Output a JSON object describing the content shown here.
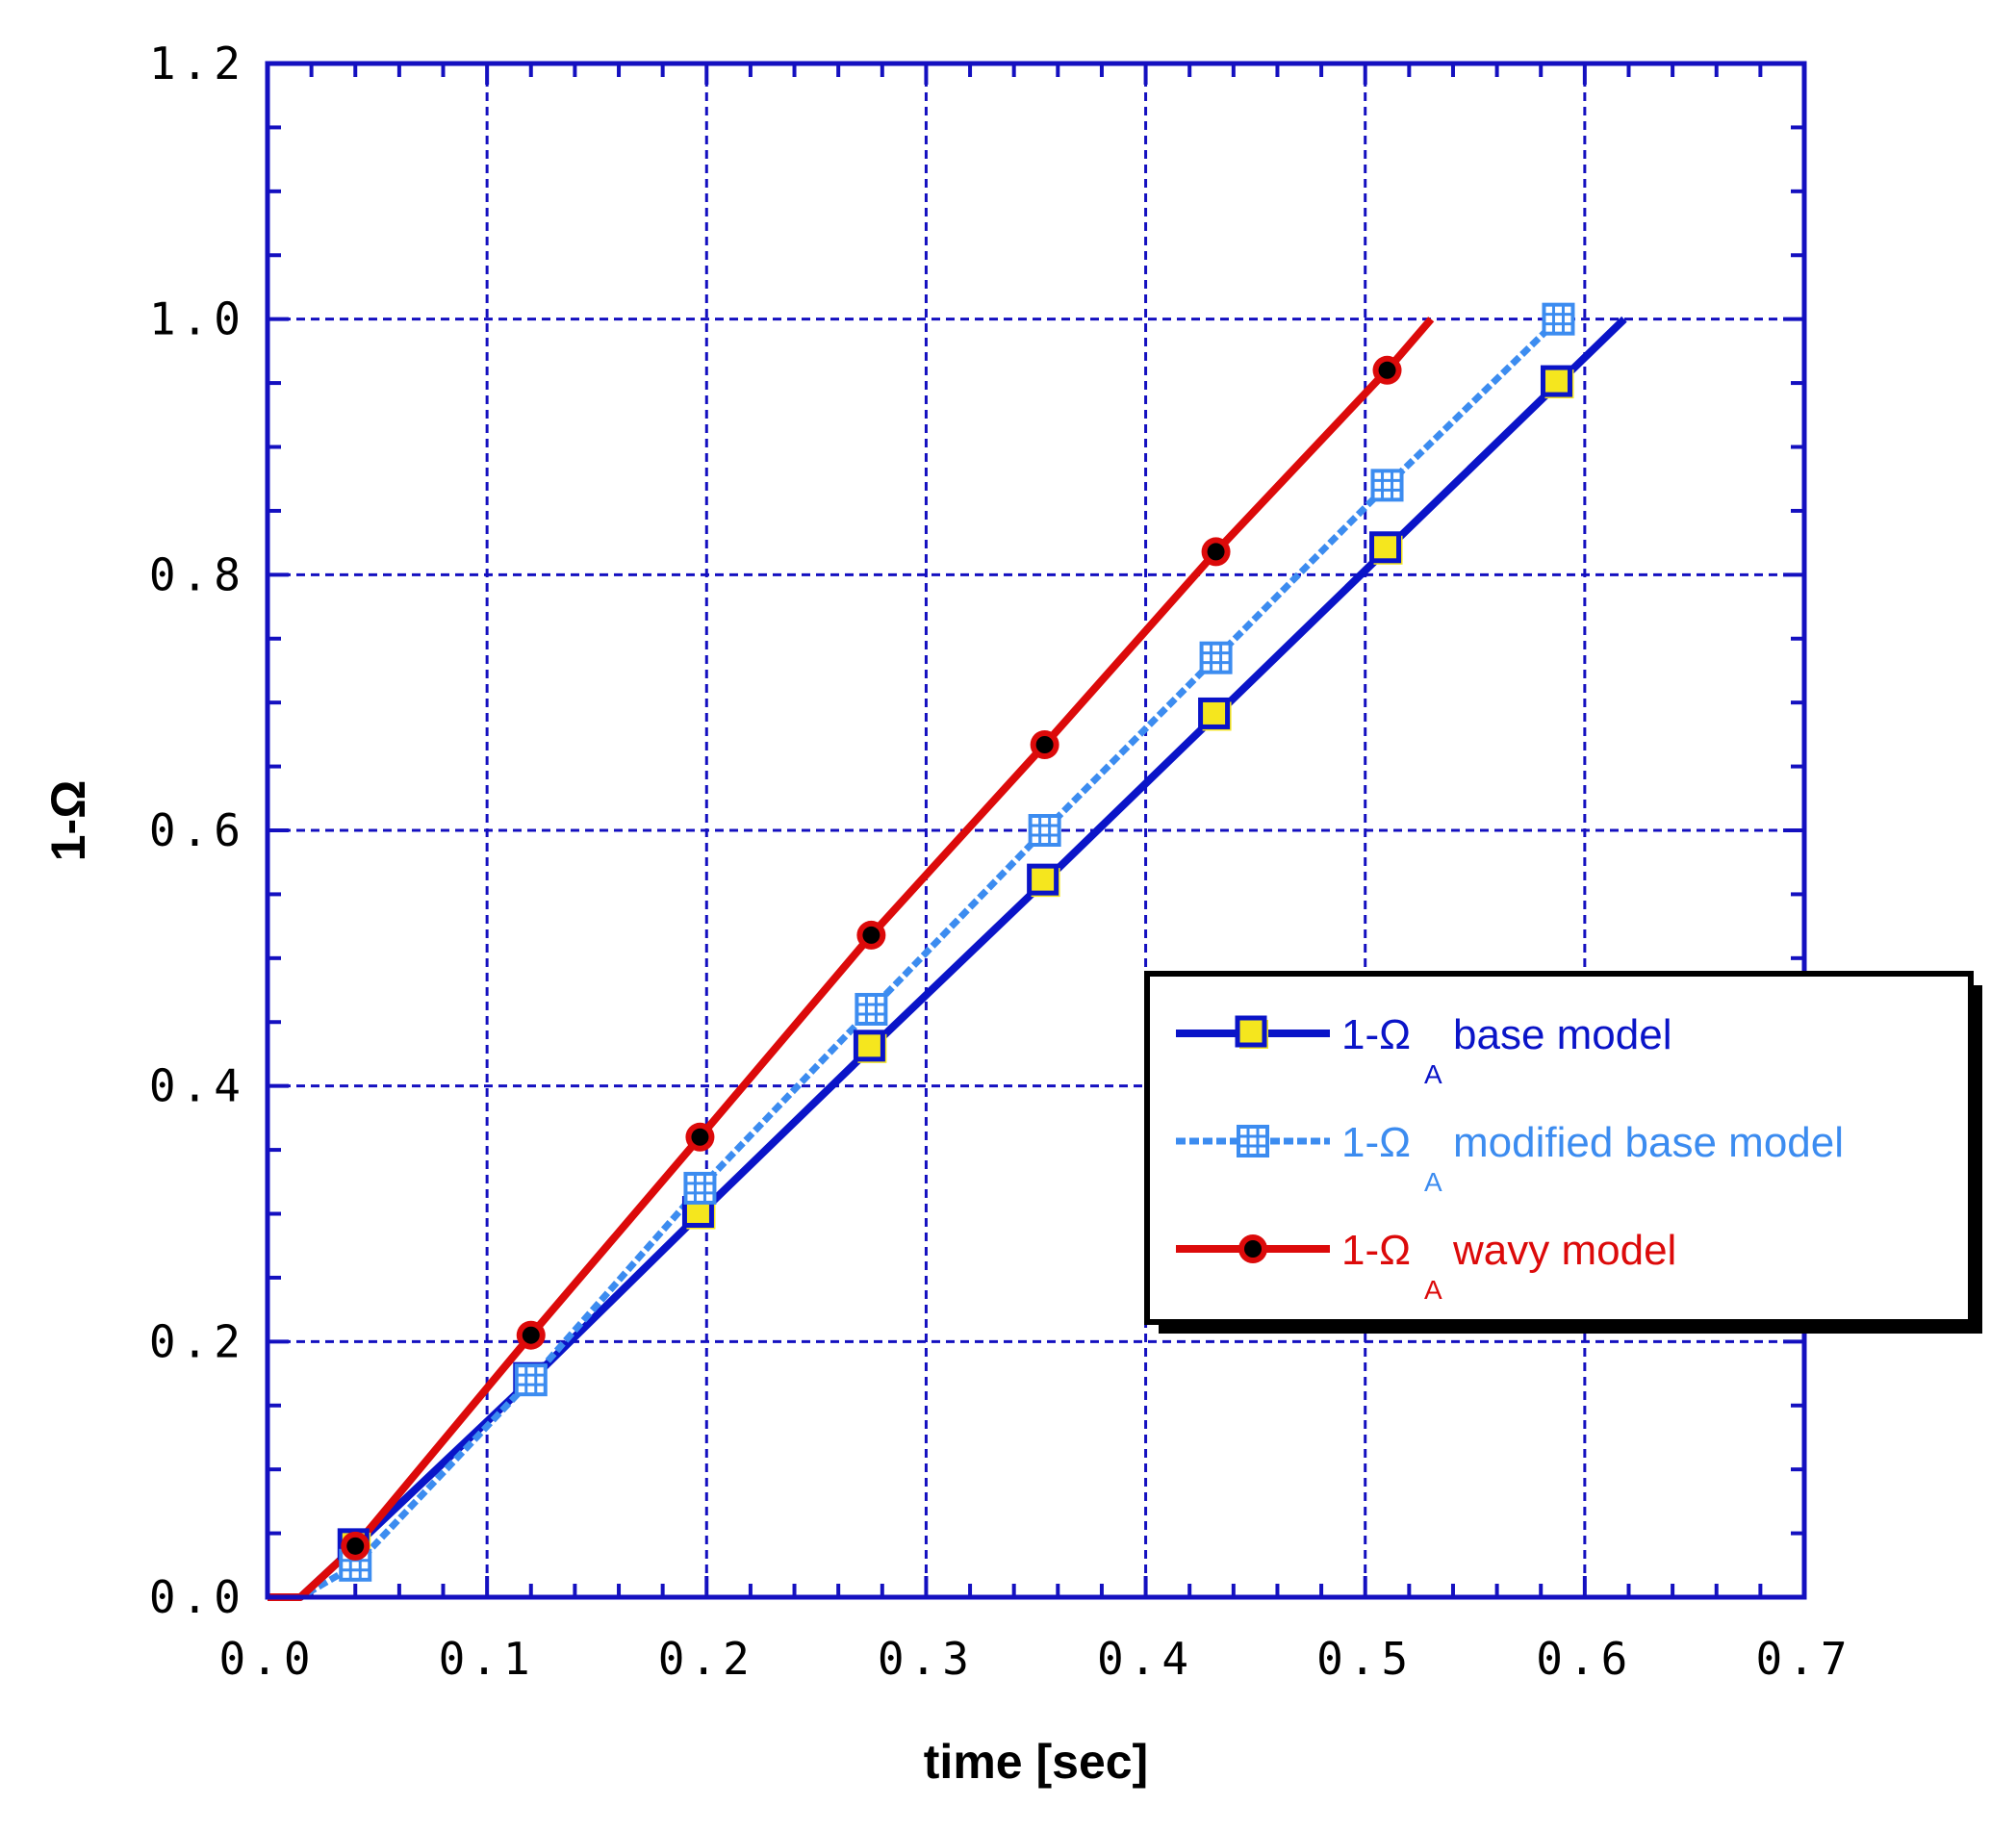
{
  "chart_data": {
    "type": "line",
    "title": "",
    "xlabel": "time [sec]",
    "ylabel": "1-Ω",
    "xlim": [
      0,
      0.7
    ],
    "ylim": [
      0,
      1.2
    ],
    "x_ticks": [
      "0.0",
      "0.1",
      "0.2",
      "0.3",
      "0.4",
      "0.5",
      "0.6",
      "0.7"
    ],
    "y_ticks": [
      "0.0",
      "0.2",
      "0.4",
      "0.6",
      "0.8",
      "1.0",
      "1.2"
    ],
    "grid": true,
    "legend_position": "lower-right",
    "series": [
      {
        "legend_prefix": "1-Ω",
        "legend_sub": "A",
        "legend_suffix": "base model",
        "color": "#0a14c8",
        "marker_fill": "#f5e61e",
        "marker": "square",
        "line_style": "solid",
        "x": [
          0.0,
          0.015,
          0.04,
          0.12,
          0.197,
          0.275,
          0.354,
          0.432,
          0.51,
          0.588,
          0.618
        ],
        "y": [
          0.0,
          0.0,
          0.04,
          0.17,
          0.3,
          0.43,
          0.56,
          0.69,
          0.82,
          0.95,
          1.0
        ],
        "marker_x": [
          0.04,
          0.12,
          0.197,
          0.275,
          0.354,
          0.432,
          0.51,
          0.588
        ],
        "marker_y": [
          0.04,
          0.17,
          0.3,
          0.43,
          0.56,
          0.69,
          0.82,
          0.95
        ]
      },
      {
        "legend_prefix": "1-Ω",
        "legend_sub": "A",
        "legend_suffix": "modified base model",
        "color": "#3c8cf0",
        "marker_fill": "#ffffff",
        "marker": "hash-square",
        "line_style": "dashed",
        "x": [
          0.0,
          0.015,
          0.04,
          0.12,
          0.197,
          0.275,
          0.354,
          0.432,
          0.51,
          0.588
        ],
        "y": [
          0.0,
          0.0,
          0.025,
          0.17,
          0.32,
          0.46,
          0.6,
          0.735,
          0.87,
          1.0
        ],
        "marker_x": [
          0.04,
          0.12,
          0.197,
          0.275,
          0.354,
          0.432,
          0.51,
          0.588
        ],
        "marker_y": [
          0.025,
          0.17,
          0.32,
          0.46,
          0.6,
          0.735,
          0.87,
          1.0
        ]
      },
      {
        "legend_prefix": "1-Ω",
        "legend_sub": "A",
        "legend_suffix": "wavy model",
        "color": "#dc0a0a",
        "marker_fill": "#000000",
        "marker": "circle",
        "line_style": "solid",
        "x": [
          0.0,
          0.015,
          0.04,
          0.12,
          0.197,
          0.275,
          0.354,
          0.432,
          0.51,
          0.53
        ],
        "y": [
          0.0,
          0.0,
          0.04,
          0.205,
          0.36,
          0.518,
          0.667,
          0.818,
          0.96,
          1.0
        ],
        "marker_x": [
          0.04,
          0.12,
          0.197,
          0.275,
          0.354,
          0.432,
          0.51
        ],
        "marker_y": [
          0.04,
          0.205,
          0.36,
          0.518,
          0.667,
          0.818,
          0.96
        ]
      }
    ]
  }
}
